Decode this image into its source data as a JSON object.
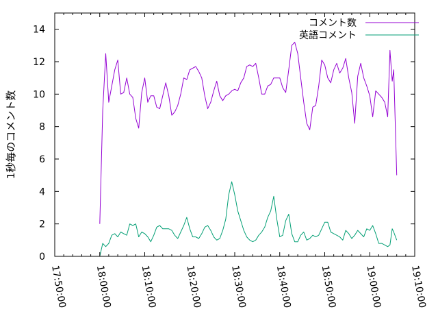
{
  "chart_data": {
    "type": "line",
    "title": "",
    "xlabel": "",
    "ylabel": "1秒毎のコメント数",
    "xlim": [
      "17:50:00",
      "19:10:00"
    ],
    "ylim": [
      0,
      15
    ],
    "x_ticks": [
      "17:50:00",
      "18:00:00",
      "18:10:00",
      "18:20:00",
      "18:30:00",
      "18:40:00",
      "18:50:00",
      "19:00:00",
      "19:10:00"
    ],
    "y_ticks": [
      0,
      2,
      4,
      6,
      8,
      10,
      12,
      14
    ],
    "grid": false,
    "legend": "top-right",
    "series": [
      {
        "name": "コメント数",
        "color": "#9400d3",
        "points": [
          [
            "18:00:00",
            2.0
          ],
          [
            "18:00:40",
            9.0
          ],
          [
            "18:01:20",
            12.5
          ],
          [
            "18:02:00",
            9.5
          ],
          [
            "18:02:40",
            10.5
          ],
          [
            "18:03:20",
            11.5
          ],
          [
            "18:04:00",
            12.1
          ],
          [
            "18:04:40",
            10.0
          ],
          [
            "18:05:20",
            10.1
          ],
          [
            "18:06:00",
            11.0
          ],
          [
            "18:06:40",
            10.0
          ],
          [
            "18:07:20",
            9.8
          ],
          [
            "18:08:00",
            8.5
          ],
          [
            "18:08:40",
            7.9
          ],
          [
            "18:09:20",
            10.1
          ],
          [
            "18:10:00",
            11.0
          ],
          [
            "18:10:40",
            9.5
          ],
          [
            "18:11:20",
            9.9
          ],
          [
            "18:12:00",
            9.9
          ],
          [
            "18:12:40",
            9.2
          ],
          [
            "18:13:20",
            9.1
          ],
          [
            "18:14:00",
            9.9
          ],
          [
            "18:14:40",
            10.7
          ],
          [
            "18:15:20",
            9.9
          ],
          [
            "18:16:00",
            8.7
          ],
          [
            "18:16:40",
            8.9
          ],
          [
            "18:17:20",
            9.3
          ],
          [
            "18:18:00",
            10.0
          ],
          [
            "18:18:40",
            11.0
          ],
          [
            "18:19:20",
            10.9
          ],
          [
            "18:20:00",
            11.5
          ],
          [
            "18:20:40",
            11.6
          ],
          [
            "18:21:20",
            11.7
          ],
          [
            "18:22:00",
            11.4
          ],
          [
            "18:22:40",
            11.0
          ],
          [
            "18:23:20",
            9.9
          ],
          [
            "18:24:00",
            9.1
          ],
          [
            "18:24:40",
            9.5
          ],
          [
            "18:25:20",
            10.2
          ],
          [
            "18:26:00",
            10.8
          ],
          [
            "18:26:40",
            9.9
          ],
          [
            "18:27:20",
            9.6
          ],
          [
            "18:28:00",
            9.9
          ],
          [
            "18:28:40",
            10.0
          ],
          [
            "18:29:20",
            10.2
          ],
          [
            "18:30:00",
            10.3
          ],
          [
            "18:30:40",
            10.2
          ],
          [
            "18:31:20",
            10.7
          ],
          [
            "18:32:00",
            11.0
          ],
          [
            "18:32:40",
            11.7
          ],
          [
            "18:33:20",
            11.8
          ],
          [
            "18:34:00",
            11.7
          ],
          [
            "18:34:40",
            11.9
          ],
          [
            "18:35:20",
            11.0
          ],
          [
            "18:36:00",
            10.0
          ],
          [
            "18:36:40",
            10.0
          ],
          [
            "18:37:20",
            10.5
          ],
          [
            "18:38:00",
            10.6
          ],
          [
            "18:38:40",
            11.0
          ],
          [
            "18:39:20",
            11.0
          ],
          [
            "18:40:00",
            11.0
          ],
          [
            "18:40:40",
            10.4
          ],
          [
            "18:41:20",
            10.1
          ],
          [
            "18:42:00",
            11.5
          ],
          [
            "18:42:40",
            13.0
          ],
          [
            "18:43:20",
            13.2
          ],
          [
            "18:44:00",
            12.5
          ],
          [
            "18:44:40",
            11.0
          ],
          [
            "18:45:20",
            9.5
          ],
          [
            "18:46:00",
            8.2
          ],
          [
            "18:46:40",
            7.8
          ],
          [
            "18:47:20",
            9.2
          ],
          [
            "18:48:00",
            9.3
          ],
          [
            "18:48:40",
            10.5
          ],
          [
            "18:49:20",
            12.1
          ],
          [
            "18:50:00",
            11.8
          ],
          [
            "18:50:40",
            11.0
          ],
          [
            "18:51:20",
            10.7
          ],
          [
            "18:52:00",
            11.5
          ],
          [
            "18:52:40",
            11.9
          ],
          [
            "18:53:20",
            11.3
          ],
          [
            "18:54:00",
            11.6
          ],
          [
            "18:54:40",
            12.2
          ],
          [
            "18:55:20",
            11.0
          ],
          [
            "18:56:00",
            10.1
          ],
          [
            "18:56:40",
            8.2
          ],
          [
            "18:57:20",
            11.1
          ],
          [
            "18:58:00",
            11.9
          ],
          [
            "18:58:40",
            11.0
          ],
          [
            "18:59:20",
            10.5
          ],
          [
            "19:00:00",
            9.9
          ],
          [
            "19:00:40",
            8.6
          ],
          [
            "19:01:20",
            10.2
          ],
          [
            "19:02:00",
            10.0
          ],
          [
            "19:02:40",
            9.8
          ],
          [
            "19:03:20",
            9.5
          ],
          [
            "19:04:00",
            8.6
          ],
          [
            "19:04:30",
            12.7
          ],
          [
            "19:05:00",
            10.8
          ],
          [
            "19:05:20",
            11.5
          ],
          [
            "19:06:00",
            5.0
          ]
        ]
      },
      {
        "name": "英語コメント",
        "color": "#009e73",
        "points": [
          [
            "18:00:00",
            0.0
          ],
          [
            "18:00:40",
            0.8
          ],
          [
            "18:01:20",
            0.6
          ],
          [
            "18:02:00",
            0.8
          ],
          [
            "18:02:40",
            1.3
          ],
          [
            "18:03:20",
            1.4
          ],
          [
            "18:04:00",
            1.2
          ],
          [
            "18:04:40",
            1.5
          ],
          [
            "18:05:20",
            1.4
          ],
          [
            "18:06:00",
            1.3
          ],
          [
            "18:06:40",
            2.0
          ],
          [
            "18:07:20",
            1.9
          ],
          [
            "18:08:00",
            2.0
          ],
          [
            "18:08:40",
            1.2
          ],
          [
            "18:09:20",
            1.5
          ],
          [
            "18:10:00",
            1.4
          ],
          [
            "18:10:40",
            1.2
          ],
          [
            "18:11:20",
            0.9
          ],
          [
            "18:12:00",
            1.3
          ],
          [
            "18:12:40",
            1.8
          ],
          [
            "18:13:20",
            1.9
          ],
          [
            "18:14:00",
            1.7
          ],
          [
            "18:14:40",
            1.7
          ],
          [
            "18:15:20",
            1.7
          ],
          [
            "18:16:00",
            1.6
          ],
          [
            "18:16:40",
            1.3
          ],
          [
            "18:17:20",
            1.1
          ],
          [
            "18:18:00",
            1.5
          ],
          [
            "18:18:40",
            1.9
          ],
          [
            "18:19:20",
            2.4
          ],
          [
            "18:20:00",
            1.7
          ],
          [
            "18:20:40",
            1.2
          ],
          [
            "18:21:20",
            1.2
          ],
          [
            "18:22:00",
            1.1
          ],
          [
            "18:22:40",
            1.4
          ],
          [
            "18:23:20",
            1.8
          ],
          [
            "18:24:00",
            1.9
          ],
          [
            "18:24:40",
            1.6
          ],
          [
            "18:25:20",
            1.2
          ],
          [
            "18:26:00",
            1.0
          ],
          [
            "18:26:40",
            1.1
          ],
          [
            "18:27:20",
            1.6
          ],
          [
            "18:28:00",
            2.3
          ],
          [
            "18:28:40",
            3.8
          ],
          [
            "18:29:20",
            4.6
          ],
          [
            "18:30:00",
            3.8
          ],
          [
            "18:30:40",
            2.8
          ],
          [
            "18:31:20",
            2.2
          ],
          [
            "18:32:00",
            1.6
          ],
          [
            "18:32:40",
            1.2
          ],
          [
            "18:33:20",
            1.0
          ],
          [
            "18:34:00",
            0.9
          ],
          [
            "18:34:40",
            1.0
          ],
          [
            "18:35:20",
            1.3
          ],
          [
            "18:36:00",
            1.5
          ],
          [
            "18:36:40",
            1.8
          ],
          [
            "18:37:20",
            2.4
          ],
          [
            "18:38:00",
            2.8
          ],
          [
            "18:38:40",
            3.7
          ],
          [
            "18:39:20",
            2.3
          ],
          [
            "18:40:00",
            1.2
          ],
          [
            "18:40:40",
            1.3
          ],
          [
            "18:41:20",
            2.2
          ],
          [
            "18:42:00",
            2.6
          ],
          [
            "18:42:40",
            1.4
          ],
          [
            "18:43:20",
            0.9
          ],
          [
            "18:44:00",
            0.9
          ],
          [
            "18:44:40",
            1.3
          ],
          [
            "18:45:20",
            1.5
          ],
          [
            "18:46:00",
            1.0
          ],
          [
            "18:46:40",
            1.1
          ],
          [
            "18:47:20",
            1.3
          ],
          [
            "18:48:00",
            1.2
          ],
          [
            "18:48:40",
            1.3
          ],
          [
            "18:49:20",
            1.7
          ],
          [
            "18:50:00",
            2.1
          ],
          [
            "18:50:40",
            2.1
          ],
          [
            "18:51:20",
            1.5
          ],
          [
            "18:52:00",
            1.4
          ],
          [
            "18:52:40",
            1.3
          ],
          [
            "18:53:20",
            1.2
          ],
          [
            "18:54:00",
            1.0
          ],
          [
            "18:54:40",
            1.6
          ],
          [
            "18:55:20",
            1.4
          ],
          [
            "18:56:00",
            1.1
          ],
          [
            "18:56:40",
            1.3
          ],
          [
            "18:57:20",
            1.6
          ],
          [
            "18:58:00",
            1.4
          ],
          [
            "18:58:40",
            1.2
          ],
          [
            "18:59:20",
            1.7
          ],
          [
            "19:00:00",
            1.6
          ],
          [
            "19:00:40",
            1.9
          ],
          [
            "19:01:20",
            1.4
          ],
          [
            "19:02:00",
            0.8
          ],
          [
            "19:02:40",
            0.8
          ],
          [
            "19:03:20",
            0.7
          ],
          [
            "19:04:00",
            0.6
          ],
          [
            "19:04:30",
            0.7
          ],
          [
            "19:05:00",
            1.7
          ],
          [
            "19:05:20",
            1.5
          ],
          [
            "19:06:00",
            1.0
          ]
        ]
      }
    ]
  }
}
